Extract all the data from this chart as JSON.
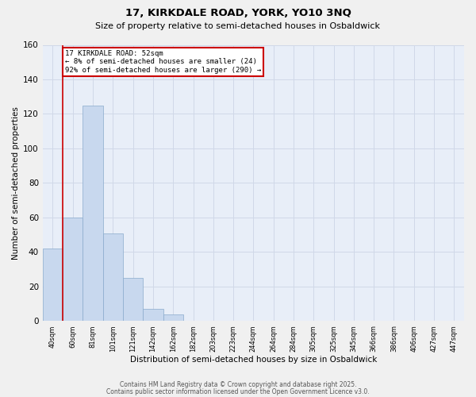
{
  "title_line1": "17, KIRKDALE ROAD, YORK, YO10 3NQ",
  "title_line2": "Size of property relative to semi-detached houses in Osbaldwick",
  "xlabel": "Distribution of semi-detached houses by size in Osbaldwick",
  "ylabel": "Number of semi-detached properties",
  "categories": [
    "40sqm",
    "60sqm",
    "81sqm",
    "101sqm",
    "121sqm",
    "142sqm",
    "162sqm",
    "182sqm",
    "203sqm",
    "223sqm",
    "244sqm",
    "264sqm",
    "284sqm",
    "305sqm",
    "325sqm",
    "345sqm",
    "366sqm",
    "386sqm",
    "406sqm",
    "427sqm",
    "447sqm"
  ],
  "values": [
    42,
    60,
    125,
    51,
    25,
    7,
    4,
    0,
    0,
    0,
    0,
    0,
    0,
    0,
    0,
    0,
    0,
    0,
    0,
    0,
    0
  ],
  "bar_color": "#c8d8ee",
  "bar_edge_color": "#8aaacc",
  "annotation_title": "17 KIRKDALE ROAD: 52sqm",
  "annotation_line1": "← 8% of semi-detached houses are smaller (24)",
  "annotation_line2": "92% of semi-detached houses are larger (290) →",
  "annotation_box_color": "#ffffff",
  "annotation_border_color": "#cc0000",
  "vline_color": "#cc0000",
  "ylim": [
    0,
    160
  ],
  "yticks": [
    0,
    20,
    40,
    60,
    80,
    100,
    120,
    140,
    160
  ],
  "grid_color": "#d0d8e8",
  "bg_color": "#e8eef8",
  "fig_bg_color": "#f0f0f0",
  "footer_line1": "Contains HM Land Registry data © Crown copyright and database right 2025.",
  "footer_line2": "Contains public sector information licensed under the Open Government Licence v3.0."
}
